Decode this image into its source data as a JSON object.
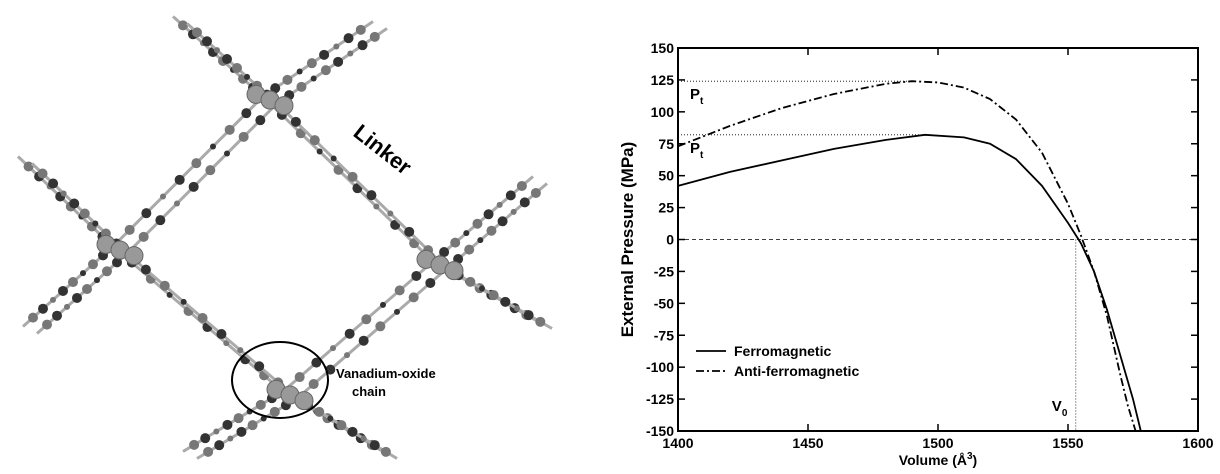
{
  "structure": {
    "labels": [
      "Linker",
      "Vanadium-oxide chain"
    ]
  },
  "chart_data": {
    "type": "line",
    "x_label": {
      "text": "Volume (Å",
      "sup": "3",
      "after": ")"
    },
    "y_label": "External Pressure (MPa)",
    "xlim": [
      1400,
      1600
    ],
    "xticks": [
      1400,
      1450,
      1500,
      1550,
      1600
    ],
    "ylim": [
      -150,
      150
    ],
    "yticks": [
      -150,
      -125,
      -100,
      -75,
      -50,
      -25,
      0,
      25,
      50,
      75,
      100,
      125,
      150
    ],
    "series": [
      {
        "name": "Ferromagnetic",
        "color": "#000000",
        "dash": "solid",
        "x": [
          1400,
          1420,
          1440,
          1460,
          1480,
          1495,
          1510,
          1520,
          1530,
          1540,
          1550,
          1555,
          1560,
          1565,
          1570,
          1575,
          1578
        ],
        "values": [
          42,
          53,
          62,
          71,
          78,
          82,
          80,
          75,
          63,
          42,
          13,
          -3,
          -25,
          -55,
          -90,
          -125,
          -150
        ]
      },
      {
        "name": "Anti-ferromagnetic",
        "color": "#000000",
        "dash": "dashdot",
        "x": [
          1400,
          1420,
          1440,
          1460,
          1480,
          1490,
          1500,
          1510,
          1520,
          1530,
          1540,
          1550,
          1555,
          1560,
          1565,
          1570,
          1573,
          1576
        ],
        "values": [
          73,
          89,
          103,
          114,
          122,
          124,
          123,
          119,
          110,
          94,
          68,
          28,
          3,
          -25,
          -60,
          -105,
          -130,
          -150
        ]
      }
    ],
    "zero_line": 0,
    "hlines": [
      {
        "value": 124,
        "x_end": 1490,
        "label": "P",
        "sub": "t"
      },
      {
        "value": 82,
        "x_end": 1495,
        "label": "P",
        "sub": "t"
      }
    ],
    "vline": {
      "value": 1553,
      "label": "V",
      "sub": "0"
    },
    "legend": "lower left"
  }
}
